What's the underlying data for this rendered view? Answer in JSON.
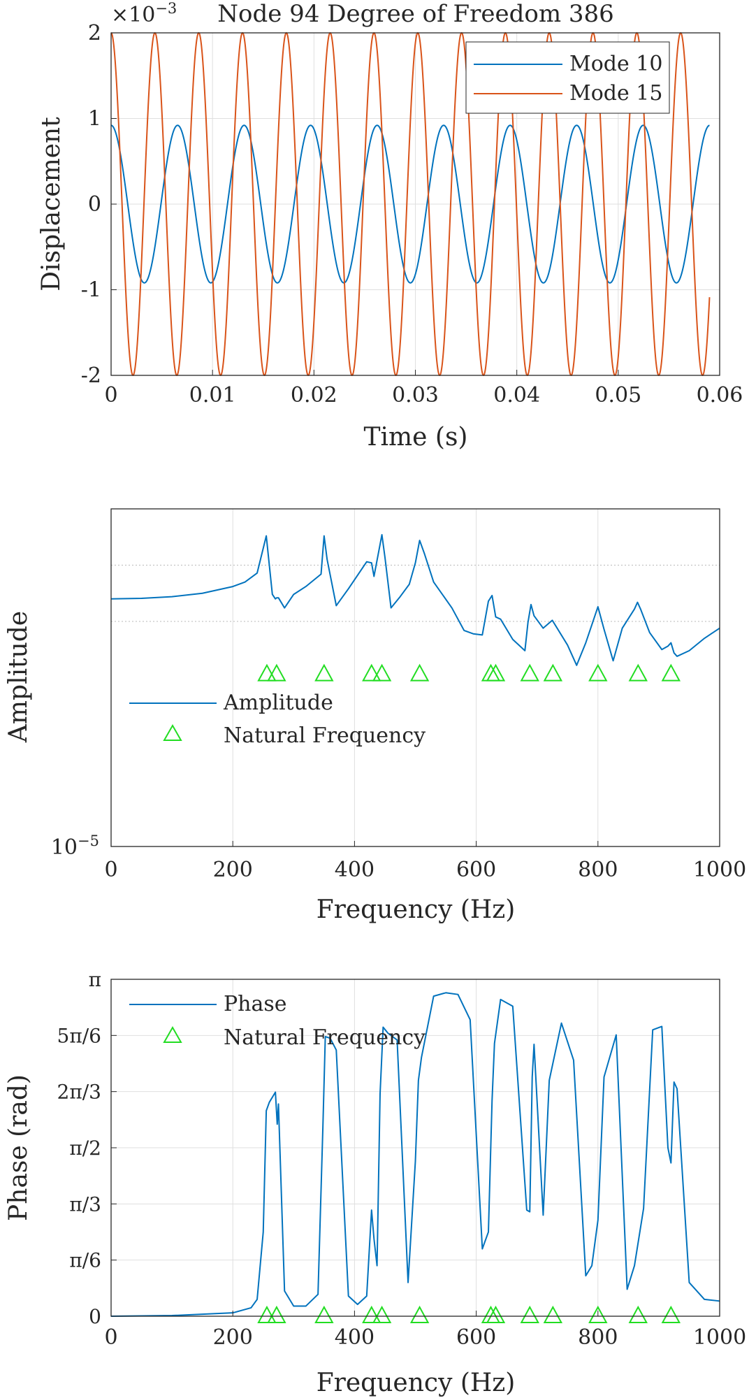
{
  "chart_data": [
    {
      "type": "line",
      "title": "Node 94 Degree of Freedom 386",
      "xlabel": "Time (s)",
      "ylabel": "Displacement",
      "exponent_label": "×10",
      "exponent_power": "−3",
      "xlim": [
        0,
        0.06
      ],
      "ylim": [
        -2,
        2
      ],
      "xticks": [
        "0",
        "0.01",
        "0.02",
        "0.03",
        "0.04",
        "0.05",
        "0.06"
      ],
      "yticks": [
        "-2",
        "-1",
        "0",
        "1",
        "2"
      ],
      "xtick_values": [
        0,
        0.01,
        0.02,
        0.03,
        0.04,
        0.05,
        0.06
      ],
      "ytick_values": [
        -2,
        -1,
        0,
        1,
        2
      ],
      "grid": true,
      "legend_position": "top-right",
      "series": [
        {
          "name": "Mode 10",
          "color": "#0072BD",
          "function": "cosine",
          "amplitude": 0.92,
          "frequency_hz": 152.5,
          "phase_rad": 0,
          "t_end": 0.059
        },
        {
          "name": "Mode 15",
          "color": "#D95319",
          "function": "cosine",
          "amplitude": 2.0,
          "frequency_hz": 231.5,
          "phase_rad": 0,
          "t_end": 0.059
        }
      ]
    },
    {
      "type": "line",
      "title": "",
      "xlabel": "Frequency (Hz)",
      "ylabel": "Amplitude",
      "xlim": [
        0,
        1000
      ],
      "ylim_log10": [
        -5,
        -2
      ],
      "yscale": "log",
      "xticks": [
        "0",
        "200",
        "400",
        "600",
        "800",
        "1000"
      ],
      "xtick_values": [
        0,
        200,
        400,
        600,
        800,
        1000
      ],
      "ytick_base": "10",
      "ytick_power": "−5",
      "grid": true,
      "legend_position": "middle-left",
      "series": [
        {
          "name": "Amplitude",
          "color": "#0072BD",
          "x": [
            0,
            50,
            100,
            150,
            200,
            220,
            240,
            255,
            265,
            270,
            272,
            275,
            285,
            300,
            320,
            345,
            350,
            355,
            370,
            390,
            420,
            428,
            432,
            445,
            450,
            460,
            475,
            490,
            500,
            507,
            515,
            530,
            560,
            580,
            595,
            610,
            620,
            626,
            632,
            640,
            660,
            680,
            685,
            690,
            695,
            710,
            725,
            750,
            765,
            780,
            800,
            810,
            825,
            840,
            860,
            865,
            870,
            885,
            905,
            915,
            920,
            925,
            930,
            950,
            975,
            1000
          ],
          "y_log10": [
            -2.8,
            -2.795,
            -2.78,
            -2.75,
            -2.69,
            -2.65,
            -2.57,
            -2.24,
            -2.76,
            -2.8,
            -2.79,
            -2.79,
            -2.88,
            -2.76,
            -2.69,
            -2.58,
            -2.24,
            -2.45,
            -2.86,
            -2.71,
            -2.47,
            -2.48,
            -2.6,
            -2.23,
            -2.43,
            -2.88,
            -2.78,
            -2.67,
            -2.48,
            -2.28,
            -2.4,
            -2.65,
            -2.88,
            -3.08,
            -3.11,
            -3.12,
            -2.82,
            -2.77,
            -2.96,
            -2.98,
            -3.16,
            -3.26,
            -3.01,
            -2.85,
            -2.95,
            -3.06,
            -2.99,
            -3.21,
            -3.39,
            -3.19,
            -2.87,
            -3.07,
            -3.35,
            -3.06,
            -2.89,
            -2.83,
            -2.89,
            -3.1,
            -3.25,
            -3.22,
            -3.19,
            -3.28,
            -3.31,
            -3.26,
            -3.15,
            -3.06
          ]
        },
        {
          "name": "Natural Frequency",
          "color": "#22DD22",
          "marker": "triangle",
          "x": [
            256,
            272,
            350,
            428,
            445,
            507,
            624,
            632,
            688,
            726,
            800,
            866,
            920
          ],
          "y_log10": [
            -3.47,
            -3.47,
            -3.47,
            -3.47,
            -3.47,
            -3.47,
            -3.47,
            -3.47,
            -3.47,
            -3.47,
            -3.47,
            -3.47,
            -3.47
          ]
        }
      ]
    },
    {
      "type": "line",
      "title": "",
      "xlabel": "Frequency (Hz)",
      "ylabel": "Phase (rad)",
      "xlim": [
        0,
        1000
      ],
      "ylim_over_pi": [
        0,
        1
      ],
      "xticks": [
        "0",
        "200",
        "400",
        "600",
        "800",
        "1000"
      ],
      "xtick_values": [
        0,
        200,
        400,
        600,
        800,
        1000
      ],
      "yticks": [
        "0",
        "π/6",
        "π/3",
        "π/2",
        "2π/3",
        "5π/6",
        "π"
      ],
      "ytick_values_over_pi": [
        0,
        0.16667,
        0.33333,
        0.5,
        0.66667,
        0.83333,
        1
      ],
      "grid": true,
      "legend_position": "top-left",
      "series": [
        {
          "name": "Phase",
          "color": "#0072BD",
          "x": [
            0,
            100,
            200,
            230,
            240,
            250,
            255,
            260,
            270,
            273,
            275,
            285,
            300,
            320,
            340,
            348,
            352,
            360,
            370,
            390,
            405,
            420,
            428,
            432,
            437,
            442,
            447,
            455,
            470,
            488,
            500,
            505,
            510,
            530,
            550,
            570,
            590,
            610,
            620,
            626,
            630,
            640,
            660,
            683,
            688,
            692,
            695,
            710,
            720,
            740,
            760,
            780,
            790,
            800,
            810,
            830,
            848,
            860,
            875,
            890,
            905,
            915,
            920,
            925,
            930,
            950,
            975,
            1000
          ],
          "y_over_pi": [
            0,
            0.002,
            0.01,
            0.025,
            0.05,
            0.25,
            0.61,
            0.635,
            0.665,
            0.57,
            0.63,
            0.075,
            0.03,
            0.03,
            0.065,
            0.56,
            0.83,
            0.825,
            0.79,
            0.06,
            0.035,
            0.06,
            0.315,
            0.23,
            0.15,
            0.66,
            0.858,
            0.84,
            0.82,
            0.1,
            0.46,
            0.7,
            0.768,
            0.95,
            0.96,
            0.955,
            0.88,
            0.2,
            0.25,
            0.64,
            0.81,
            0.94,
            0.92,
            0.315,
            0.31,
            0.71,
            0.807,
            0.3,
            0.7,
            0.87,
            0.76,
            0.12,
            0.15,
            0.285,
            0.71,
            0.835,
            0.08,
            0.15,
            0.32,
            0.85,
            0.86,
            0.5,
            0.455,
            0.695,
            0.675,
            0.1,
            0.05,
            0.045
          ]
        },
        {
          "name": "Natural Frequency",
          "color": "#22DD22",
          "marker": "triangle",
          "x": [
            256,
            272,
            350,
            428,
            445,
            507,
            624,
            632,
            688,
            726,
            800,
            866,
            920
          ],
          "y_over_pi": [
            0,
            0,
            0,
            0,
            0,
            0,
            0,
            0,
            0,
            0,
            0,
            0,
            0
          ]
        }
      ]
    }
  ]
}
